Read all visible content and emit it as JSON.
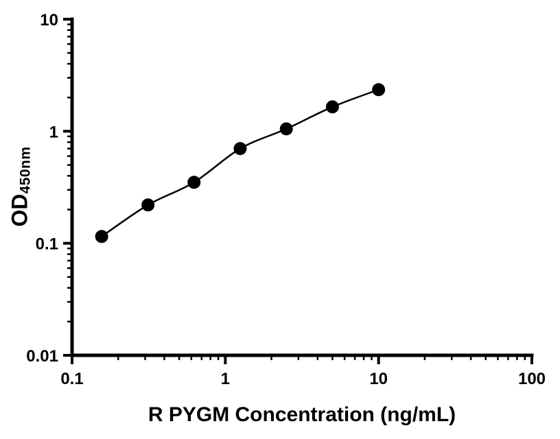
{
  "chart_data": {
    "type": "scatter",
    "title": "",
    "xlabel": "R PYGM Concentration (ng/mL)",
    "ylabel_main": "OD",
    "ylabel_sub": "450nm",
    "x_scale": "log",
    "y_scale": "log",
    "xlim": [
      0.1,
      100
    ],
    "ylim": [
      0.01,
      10
    ],
    "grid": false,
    "legend": "none",
    "x_ticks": [
      {
        "value": 0.1,
        "label": "0.1"
      },
      {
        "value": 1,
        "label": "1"
      },
      {
        "value": 10,
        "label": "10"
      },
      {
        "value": 100,
        "label": "100"
      }
    ],
    "y_ticks": [
      {
        "value": 0.01,
        "label": "0.01"
      },
      {
        "value": 0.1,
        "label": "0.1"
      },
      {
        "value": 1,
        "label": "1"
      },
      {
        "value": 10,
        "label": "10"
      }
    ],
    "minor_log_ticks": true,
    "marker_color": "#000000",
    "line_color": "#000000",
    "curve_through_points": true,
    "points": [
      {
        "x": 0.156,
        "y": 0.115
      },
      {
        "x": 0.313,
        "y": 0.22
      },
      {
        "x": 0.625,
        "y": 0.35
      },
      {
        "x": 1.25,
        "y": 0.7
      },
      {
        "x": 2.5,
        "y": 1.05
      },
      {
        "x": 5,
        "y": 1.65
      },
      {
        "x": 10,
        "y": 2.35
      }
    ]
  }
}
